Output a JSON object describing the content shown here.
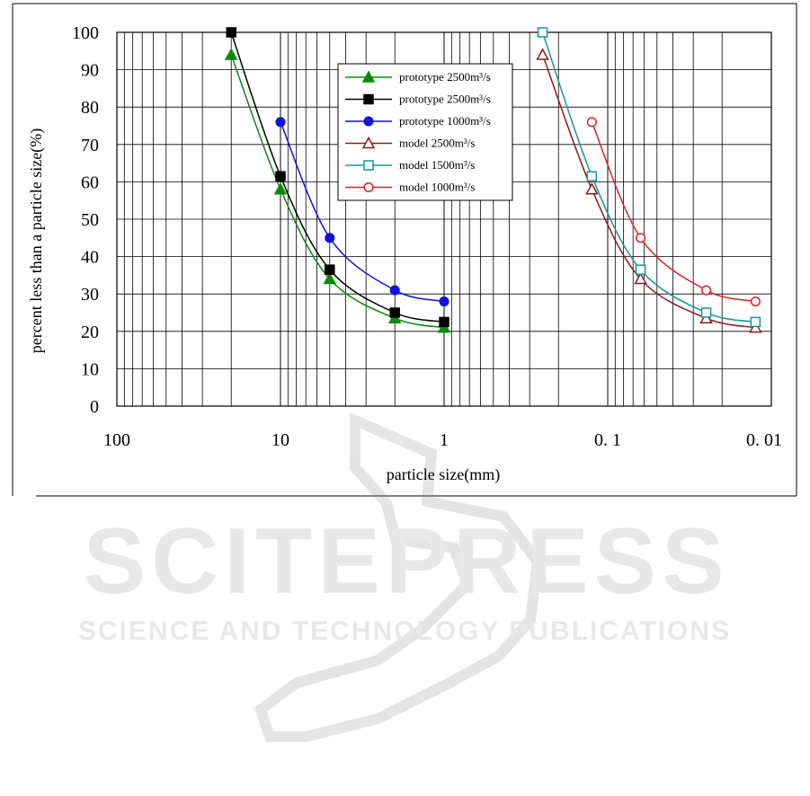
{
  "chart_data": {
    "type": "line",
    "xlabel": "particle size(mm)",
    "ylabel": "percent less than a particle size(%)",
    "x_scale": "log",
    "x_reversed": true,
    "xlim": [
      100,
      0.01
    ],
    "ylim": [
      0,
      100
    ],
    "x_ticks": [
      100,
      10,
      1,
      0.1,
      0.01
    ],
    "x_tick_labels": [
      "100",
      "10",
      "1",
      "0. 1",
      "0. 01"
    ],
    "y_ticks": [
      0,
      10,
      20,
      30,
      40,
      50,
      60,
      70,
      80,
      90,
      100
    ],
    "y_tick_labels": [
      "0",
      "10",
      "20",
      "30",
      "40",
      "50",
      "60",
      "70",
      "80",
      "90",
      "100"
    ],
    "grid": true,
    "legend_position": "top-center",
    "series": [
      {
        "name": "prototype 2500m³/s",
        "color": "#0a8a0a",
        "marker": "triangle-filled",
        "x": [
          20,
          10,
          5,
          2,
          1
        ],
        "y": [
          94,
          58,
          34,
          23.5,
          21
        ]
      },
      {
        "name": "prototype 2500m³/s",
        "color": "#000000",
        "marker": "square-filled",
        "x": [
          20,
          10,
          5,
          2,
          1
        ],
        "y": [
          100,
          61.5,
          36.5,
          25,
          22.5
        ]
      },
      {
        "name": "prototype 1000m³/s",
        "color": "#1010e0",
        "marker": "circle-filled",
        "x": [
          10,
          5,
          2,
          1
        ],
        "y": [
          76,
          45,
          31,
          28
        ]
      },
      {
        "name": "model    2500m³/s",
        "color": "#8b1a1a",
        "marker": "triangle-open",
        "x": [
          0.25,
          0.125,
          0.063,
          0.025,
          0.0125
        ],
        "y": [
          94,
          58,
          34,
          23.5,
          21
        ]
      },
      {
        "name": "model    1500m³/s",
        "color": "#1a9494",
        "marker": "square-open",
        "x": [
          0.25,
          0.125,
          0.063,
          0.025,
          0.0125
        ],
        "y": [
          100,
          61.5,
          36.5,
          25,
          22.5
        ]
      },
      {
        "name": "model    1000m³/s",
        "color": "#e02020",
        "marker": "circle-open",
        "x": [
          0.125,
          0.063,
          0.025,
          0.0125
        ],
        "y": [
          76,
          45,
          31,
          28
        ]
      }
    ]
  },
  "watermark": {
    "title": "SCITEPRESS",
    "subtitle": "SCIENCE AND TECHNOLOGY PUBLICATIONS"
  }
}
